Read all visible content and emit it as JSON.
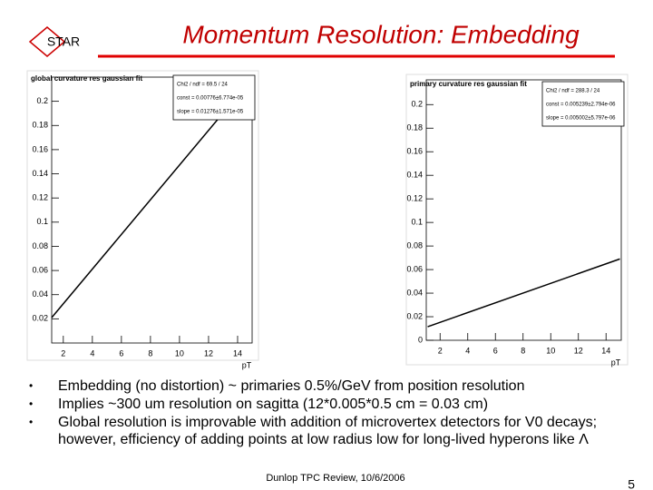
{
  "logo": "STAR",
  "title": "Momentum Resolution: Embedding",
  "bullets": [
    "Embedding (no distortion) ~ primaries 0.5%/GeV from position resolution",
    "Implies ~300 um resolution on sagitta (12*0.005*0.5 cm = 0.03 cm)",
    "Global resolution is improvable with addition of microvertex detectors for V0 decays; however, efficiency of adding points at low radius low for long-lived hyperons like Λ"
  ],
  "footer": "Dunlop TPC Review, 10/6/2006",
  "page_number": "5",
  "chart_data": [
    {
      "type": "line",
      "title": "global curvature res gaussian fit",
      "stats": [
        "Chi2 / ndf = 69.5 / 24",
        "const = 0.00776±6.774e-05",
        "slope = 0.01276±1.571e-05"
      ],
      "x": [
        1.2,
        15
      ],
      "values": [
        0.021,
        0.219
      ],
      "color": "#000000",
      "xlabel": "pT",
      "xlim": [
        1.2,
        15
      ],
      "ylim": [
        0,
        0.22
      ],
      "xticks": [
        2,
        4,
        6,
        8,
        10,
        12,
        14
      ],
      "yticks": [
        0.02,
        0.04,
        0.06,
        0.08,
        0.1,
        0.12,
        0.14,
        0.16,
        0.18,
        0.2
      ]
    },
    {
      "type": "line",
      "title": "primary curvature res gaussian fit",
      "stats": [
        "Chi2 / ndf = 288.3 / 24",
        "const = 0.005239±2.794e-06",
        "slope = 0.005002±5.797e-06"
      ],
      "x": [
        1.1,
        15
      ],
      "values": [
        0.0115,
        0.069
      ],
      "color": "#000000",
      "xlabel": "pT",
      "xlim": [
        1.0,
        15.1
      ],
      "ylim": [
        0,
        0.221
      ],
      "xticks": [
        2,
        4,
        6,
        8,
        10,
        12,
        14
      ],
      "yticks": [
        0,
        0.02,
        0.04,
        0.06,
        0.08,
        0.1,
        0.12,
        0.14,
        0.16,
        0.18,
        0.2
      ]
    }
  ]
}
